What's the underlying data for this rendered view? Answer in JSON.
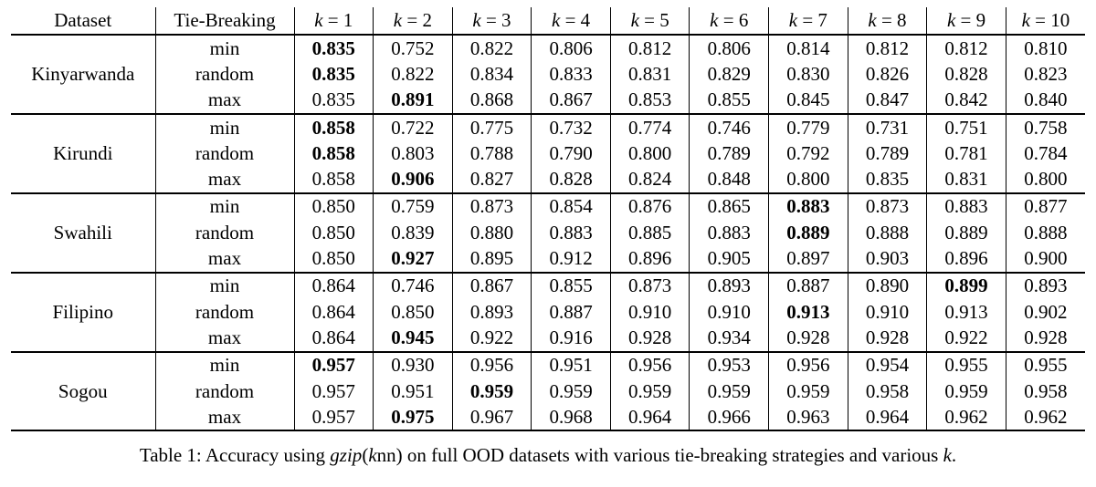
{
  "colors": {
    "background": "#ffffff",
    "text": "#000000",
    "rules": "#000000"
  },
  "table": {
    "header": {
      "dataset": "Dataset",
      "tie_breaking": "Tie-Breaking",
      "k_headers": [
        {
          "var": "k",
          "rest": " = 1"
        },
        {
          "var": "k",
          "rest": " = 2"
        },
        {
          "var": "k",
          "rest": " = 3"
        },
        {
          "var": "k",
          "rest": " = 4"
        },
        {
          "var": "k",
          "rest": " = 5"
        },
        {
          "var": "k",
          "rest": " = 6"
        },
        {
          "var": "k",
          "rest": " = 7"
        },
        {
          "var": "k",
          "rest": " = 8"
        },
        {
          "var": "k",
          "rest": " = 9"
        },
        {
          "var": "k",
          "rest": " = 10"
        }
      ]
    },
    "groups": [
      {
        "dataset": "Kinyarwanda",
        "rows": [
          {
            "strategy": "min",
            "values": [
              "0.835",
              "0.752",
              "0.822",
              "0.806",
              "0.812",
              "0.806",
              "0.814",
              "0.812",
              "0.812",
              "0.810"
            ],
            "bold": [
              0
            ]
          },
          {
            "strategy": "random",
            "values": [
              "0.835",
              "0.822",
              "0.834",
              "0.833",
              "0.831",
              "0.829",
              "0.830",
              "0.826",
              "0.828",
              "0.823"
            ],
            "bold": [
              0
            ]
          },
          {
            "strategy": "max",
            "values": [
              "0.835",
              "0.891",
              "0.868",
              "0.867",
              "0.853",
              "0.855",
              "0.845",
              "0.847",
              "0.842",
              "0.840"
            ],
            "bold": [
              1
            ]
          }
        ]
      },
      {
        "dataset": "Kirundi",
        "rows": [
          {
            "strategy": "min",
            "values": [
              "0.858",
              "0.722",
              "0.775",
              "0.732",
              "0.774",
              "0.746",
              "0.779",
              "0.731",
              "0.751",
              "0.758"
            ],
            "bold": [
              0
            ]
          },
          {
            "strategy": "random",
            "values": [
              "0.858",
              "0.803",
              "0.788",
              "0.790",
              "0.800",
              "0.789",
              "0.792",
              "0.789",
              "0.781",
              "0.784"
            ],
            "bold": [
              0
            ]
          },
          {
            "strategy": "max",
            "values": [
              "0.858",
              "0.906",
              "0.827",
              "0.828",
              "0.824",
              "0.848",
              "0.800",
              "0.835",
              "0.831",
              "0.800"
            ],
            "bold": [
              1
            ]
          }
        ]
      },
      {
        "dataset": "Swahili",
        "rows": [
          {
            "strategy": "min",
            "values": [
              "0.850",
              "0.759",
              "0.873",
              "0.854",
              "0.876",
              "0.865",
              "0.883",
              "0.873",
              "0.883",
              "0.877"
            ],
            "bold": [
              6
            ]
          },
          {
            "strategy": "random",
            "values": [
              "0.850",
              "0.839",
              "0.880",
              "0.883",
              "0.885",
              "0.883",
              "0.889",
              "0.888",
              "0.889",
              "0.888"
            ],
            "bold": [
              6
            ]
          },
          {
            "strategy": "max",
            "values": [
              "0.850",
              "0.927",
              "0.895",
              "0.912",
              "0.896",
              "0.905",
              "0.897",
              "0.903",
              "0.896",
              "0.900"
            ],
            "bold": [
              1
            ]
          }
        ]
      },
      {
        "dataset": "Filipino",
        "rows": [
          {
            "strategy": "min",
            "values": [
              "0.864",
              "0.746",
              "0.867",
              "0.855",
              "0.873",
              "0.893",
              "0.887",
              "0.890",
              "0.899",
              "0.893"
            ],
            "bold": [
              8
            ]
          },
          {
            "strategy": "random",
            "values": [
              "0.864",
              "0.850",
              "0.893",
              "0.887",
              "0.910",
              "0.910",
              "0.913",
              "0.910",
              "0.913",
              "0.902"
            ],
            "bold": [
              6
            ]
          },
          {
            "strategy": "max",
            "values": [
              "0.864",
              "0.945",
              "0.922",
              "0.916",
              "0.928",
              "0.934",
              "0.928",
              "0.928",
              "0.922",
              "0.928"
            ],
            "bold": [
              1
            ]
          }
        ]
      },
      {
        "dataset": "Sogou",
        "rows": [
          {
            "strategy": "min",
            "values": [
              "0.957",
              "0.930",
              "0.956",
              "0.951",
              "0.956",
              "0.953",
              "0.956",
              "0.954",
              "0.955",
              "0.955"
            ],
            "bold": [
              0
            ]
          },
          {
            "strategy": "random",
            "values": [
              "0.957",
              "0.951",
              "0.959",
              "0.959",
              "0.959",
              "0.959",
              "0.959",
              "0.958",
              "0.959",
              "0.958"
            ],
            "bold": [
              2
            ]
          },
          {
            "strategy": "max",
            "values": [
              "0.957",
              "0.975",
              "0.967",
              "0.968",
              "0.964",
              "0.966",
              "0.963",
              "0.964",
              "0.962",
              "0.962"
            ],
            "bold": [
              1
            ]
          }
        ]
      }
    ]
  },
  "caption": {
    "segments": [
      {
        "text": "Table 1: Accuracy using ",
        "style": "normal"
      },
      {
        "text": "gzip",
        "style": "italic"
      },
      {
        "text": "(",
        "style": "normal"
      },
      {
        "text": "k",
        "style": "italic"
      },
      {
        "text": "nn) on full OOD datasets with various tie-breaking strategies and various ",
        "style": "normal"
      },
      {
        "text": "k",
        "style": "italic"
      },
      {
        "text": ".",
        "style": "normal"
      }
    ]
  }
}
